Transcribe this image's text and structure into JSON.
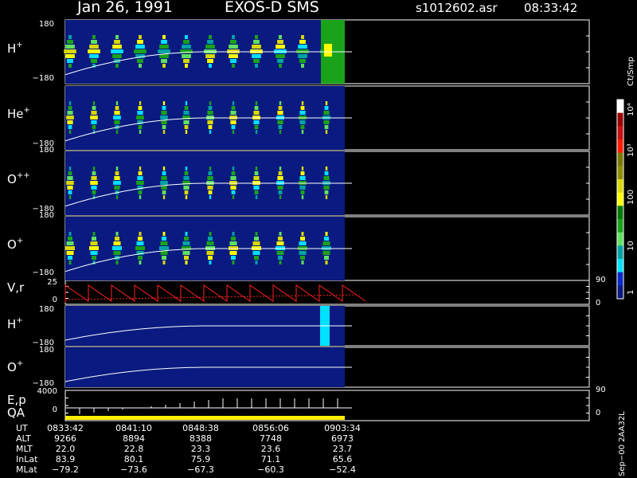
{
  "header": {
    "date": "Jan 26, 1991",
    "instrument": "EXOS-D SMS",
    "file": "s1012602.asr",
    "time": "08:33:42"
  },
  "colors": {
    "background": "#000000",
    "panel_bg": "#0a1a80",
    "trace": "#ffffff",
    "velocity_trace": "#ff2020",
    "qa_bar": "#ffee00"
  },
  "panels": [
    {
      "id": "h-plus",
      "base": "H",
      "sup": "+",
      "top_tick": "180",
      "bottom_tick": "−180"
    },
    {
      "id": "he-plus",
      "base": "He",
      "sup": "+",
      "top_tick": "",
      "bottom_tick": "−180"
    },
    {
      "id": "o-plusplus",
      "base": "O",
      "sup": "++",
      "top_tick": "180",
      "bottom_tick": "−180"
    },
    {
      "id": "o-plus",
      "base": "O",
      "sup": "+",
      "top_tick": "180",
      "bottom_tick": "−180"
    },
    {
      "id": "vr",
      "base": "V,r",
      "sup": "",
      "top_tick": "25",
      "bottom_tick": "0",
      "right_top": "90",
      "right_bottom": "0"
    },
    {
      "id": "h-plus-2",
      "base": "H",
      "sup": "+",
      "top_tick": "180",
      "bottom_tick": "−180"
    },
    {
      "id": "o-plus-2",
      "base": "O",
      "sup": "+",
      "top_tick": "180",
      "bottom_tick": "−180"
    },
    {
      "id": "ep-qa",
      "base": "E,p",
      "base2": "QA",
      "sup": "",
      "top_tick": "4000",
      "bottom_tick": "0",
      "right_top": "90",
      "right_bottom": "0"
    }
  ],
  "colorbar": {
    "unit": "Ct/Smp",
    "labels": [
      "10⁴",
      "10³",
      "100",
      "10",
      "1"
    ],
    "colors": [
      "#ffffff",
      "#9a0000",
      "#c81010",
      "#ff1a00",
      "#7a7a00",
      "#8f8f00",
      "#d9d900",
      "#ffff00",
      "#007a00",
      "#1aa31a",
      "#60e060",
      "#00a3a3",
      "#00e0ff",
      "#0a2ac8",
      "#0a1a80"
    ]
  },
  "footer": {
    "rows": [
      {
        "label": "UT",
        "values": [
          "0833:42",
          "0841:10",
          "0848:38",
          "0856:06",
          "0903:34"
        ]
      },
      {
        "label": "ALT",
        "values": [
          "9266",
          "8894",
          "8388",
          "7748",
          "6973"
        ]
      },
      {
        "label": "MLT",
        "values": [
          "22.0",
          "22.8",
          "23.3",
          "23.6",
          "23.7"
        ]
      },
      {
        "label": "InLat",
        "values": [
          "83.9",
          "80.1",
          "75.9",
          "71.1",
          "65.6"
        ]
      },
      {
        "label": "MLat",
        "values": [
          "−79.2",
          "−73.6",
          "−67.3",
          "−60.3",
          "−52.4"
        ]
      }
    ],
    "side_text": "Sep−00  2AA32L"
  },
  "chart_data": {
    "type": "heatmap",
    "x_ticks_ut": [
      "0833:42",
      "0841:10",
      "0848:38",
      "0856:06",
      "0903:34"
    ],
    "pitch_angle_range": [
      -180,
      180
    ],
    "velocity_range": [
      0,
      25
    ],
    "energy_range": [
      0,
      4000
    ]
  }
}
